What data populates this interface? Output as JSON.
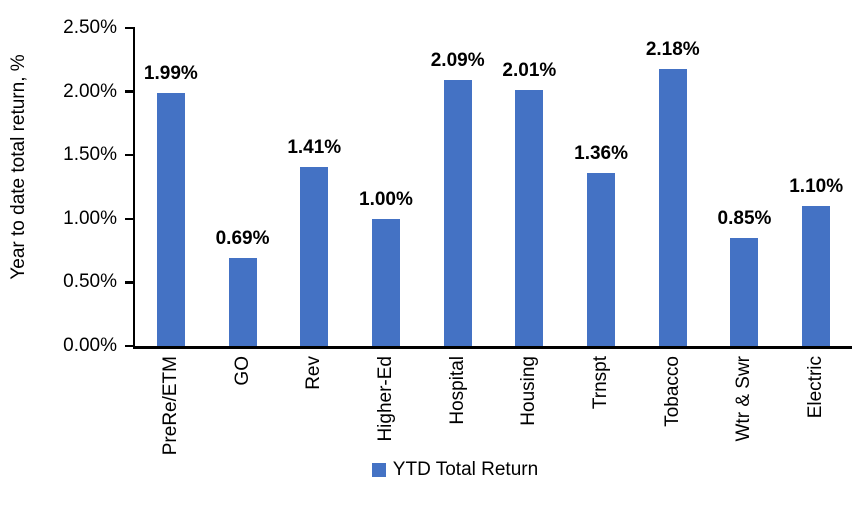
{
  "chart_data": {
    "type": "bar",
    "title": "",
    "xlabel": "",
    "ylabel": "Year to date total return, %",
    "categories": [
      "PreRe/ETM",
      "GO",
      "Rev",
      "Higher-Ed",
      "Hospital",
      "Housing",
      "Trnspt",
      "Tobacco",
      "Wtr & Swr",
      "Electric"
    ],
    "values": [
      1.99,
      0.69,
      1.41,
      1.0,
      2.09,
      2.01,
      1.36,
      2.18,
      0.85,
      1.1
    ],
    "value_labels": [
      "1.99%",
      "0.69%",
      "1.41%",
      "1.00%",
      "2.09%",
      "2.01%",
      "1.36%",
      "2.18%",
      "0.85%",
      "1.10%"
    ],
    "y_ticks": [
      "0.00%",
      "0.50%",
      "1.00%",
      "1.50%",
      "2.00%",
      "2.50%"
    ],
    "ylim": [
      0,
      2.5
    ],
    "grid": false,
    "legend_position": "bottom",
    "legend": [
      {
        "label": "YTD Total Return",
        "color": "#4472C4"
      }
    ],
    "bar_color": "#4472C4",
    "axis_color": "#000000",
    "text_color": "#000000",
    "background_color": "#FFFFFF"
  }
}
